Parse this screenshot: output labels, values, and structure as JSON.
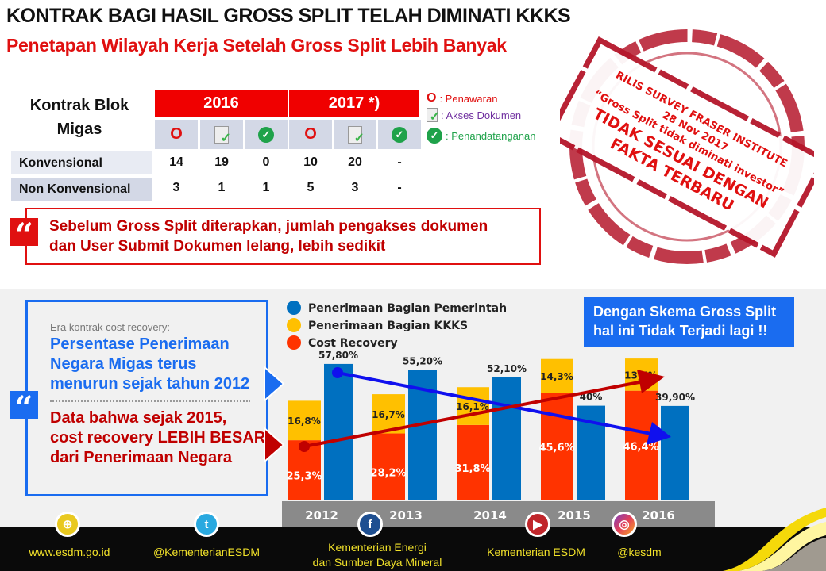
{
  "title": "KONTRAK BAGI HASIL GROSS SPLIT TELAH DIMINATI KKKS",
  "subtitle": "Penetapan Wilayah Kerja Setelah Gross Split Lebih Banyak",
  "table": {
    "label_line1": "Kontrak Blok",
    "label_line2": "Migas",
    "years": [
      "2016",
      "2017 *)"
    ],
    "icons": [
      "O",
      "document-check-icon",
      "check-circle-icon",
      "O",
      "document-check-icon",
      "check-circle-icon"
    ],
    "rows": [
      {
        "label": "Konvensional",
        "values": [
          "14",
          "19",
          "0",
          "10",
          "20",
          "-"
        ]
      },
      {
        "label": "Non Konvensional",
        "values": [
          "3",
          "1",
          "1",
          "5",
          "3",
          "-"
        ]
      }
    ]
  },
  "legend": {
    "o_symbol": "O",
    "penawaran": ": Penawaran",
    "akses": ": Akses  Dokumen",
    "penandatanganan": ": Penandatanganan"
  },
  "callout1": {
    "line1": "Sebelum Gross Split diterapkan, jumlah pengakses dokumen",
    "line2": "dan User Submit Dokumen lelang, lebih sedikit"
  },
  "stamp": {
    "line1": "RILIS SURVEY FRASER INSTITUTE",
    "line2": "28 Nov 2017",
    "line3": "“Gross Split tidak diminati investor”",
    "line4": "TIDAK SESUAI DENGAN",
    "line5": "FAKTA TERBARU"
  },
  "quote_mark": "“",
  "left_box": {
    "era": "Era kontrak cost recovery:",
    "blue_lines": [
      "Persentase Penerimaan",
      "Negara Migas terus",
      "menurun sejak tahun 2012"
    ],
    "red_lines": [
      "Data bahwa sejak 2015,",
      "cost recovery LEBIH BESAR",
      "dari Penerimaan Negara"
    ]
  },
  "right_box": {
    "line1": "Dengan Skema Gross Split",
    "line2": "hal ini Tidak Terjadi lagi !!"
  },
  "colors": {
    "pemerintah": "#0070c0",
    "kkks": "#ffc000",
    "cost_recovery": "#ff3300",
    "red": "#e01010",
    "blue_accent": "#1a6cf0"
  },
  "chart_data": {
    "type": "bar",
    "categories": [
      "2012",
      "2013",
      "2014",
      "2015",
      "2016"
    ],
    "series": [
      {
        "name": "Penerimaan Bagian Pemerintah",
        "values": [
          57.8,
          55.2,
          52.1,
          40,
          39.9
        ],
        "labels": [
          "57,80%",
          "55,20%",
          "52,10%",
          "40%",
          "39,90%"
        ]
      },
      {
        "name": "Penerimaan Bagian KKKS",
        "values": [
          16.8,
          16.7,
          16.1,
          14.3,
          13.7
        ],
        "labels": [
          "16,8%",
          "16,7%",
          "16,1%",
          "14,3%",
          "13,7%"
        ]
      },
      {
        "name": "Cost Recovery",
        "values": [
          25.3,
          28.2,
          31.8,
          45.6,
          46.4
        ],
        "labels": [
          "25,3%",
          "28,2%",
          "31,8%",
          "45,6%",
          "46,4%"
        ]
      }
    ],
    "stacked": "KKKS on top of Cost Recovery; Pemerintah separate bar",
    "legend_position": "top-left",
    "trend_arrows": [
      "Pemerintah decreasing",
      "Cost Recovery increasing"
    ]
  },
  "footer": {
    "website": "www.esdm.go.id",
    "twitter": "@KementerianESDM",
    "facebook_line1": "Kementerian Energi",
    "facebook_line2": "dan Sumber Daya Mineral",
    "youtube": "Kementerian ESDM",
    "instagram": "@kesdm"
  }
}
